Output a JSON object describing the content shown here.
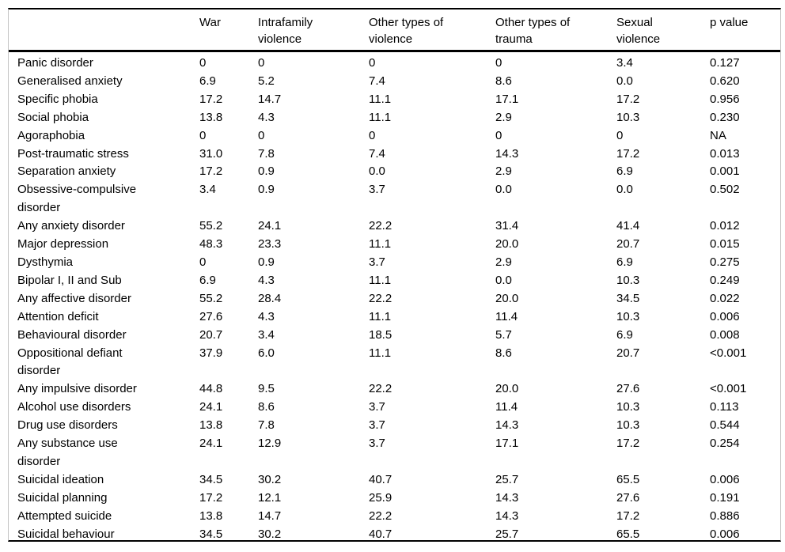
{
  "table": {
    "header": [
      "",
      "War",
      "Intrafamily violence",
      "Other types of violence",
      "Other types of trauma",
      "Sexual violence",
      "p value"
    ],
    "rows": [
      {
        "label": "Panic disorder",
        "values": [
          "0",
          "0",
          "0",
          "0",
          "3.4",
          "0.127"
        ]
      },
      {
        "label": "Generalised anxiety",
        "values": [
          "6.9",
          "5.2",
          "7.4",
          "8.6",
          "0.0",
          "0.620"
        ]
      },
      {
        "label": "Specific phobia",
        "values": [
          "17.2",
          "14.7",
          "11.1",
          "17.1",
          "17.2",
          "0.956"
        ]
      },
      {
        "label": "Social phobia",
        "values": [
          "13.8",
          "4.3",
          "11.1",
          "2.9",
          "10.3",
          "0.230"
        ]
      },
      {
        "label": "Agoraphobia",
        "values": [
          "0",
          "0",
          "0",
          "0",
          "0",
          "NA"
        ]
      },
      {
        "label": "Post-traumatic stress",
        "values": [
          "31.0",
          "7.8",
          "7.4",
          "14.3",
          "17.2",
          "0.013"
        ]
      },
      {
        "label": "Separation anxiety",
        "values": [
          "17.2",
          "0.9",
          "0.0",
          "2.9",
          "6.9",
          "0.001"
        ]
      },
      {
        "label": "Obsessive-compulsive disorder",
        "values": [
          "3.4",
          "0.9",
          "3.7",
          "0.0",
          "0.0",
          "0.502"
        ]
      },
      {
        "label": "Any anxiety disorder",
        "values": [
          "55.2",
          "24.1",
          "22.2",
          "31.4",
          "41.4",
          "0.012"
        ]
      },
      {
        "label": "Major depression",
        "values": [
          "48.3",
          "23.3",
          "11.1",
          "20.0",
          "20.7",
          "0.015"
        ]
      },
      {
        "label": "Dysthymia",
        "values": [
          "0",
          "0.9",
          "3.7",
          "2.9",
          "6.9",
          "0.275"
        ]
      },
      {
        "label": "Bipolar I, II and Sub",
        "values": [
          "6.9",
          "4.3",
          "11.1",
          "0.0",
          "10.3",
          "0.249"
        ]
      },
      {
        "label": "Any affective disorder",
        "values": [
          "55.2",
          "28.4",
          "22.2",
          "20.0",
          "34.5",
          "0.022"
        ]
      },
      {
        "label": "Attention deficit",
        "values": [
          "27.6",
          "4.3",
          "11.1",
          "11.4",
          "10.3",
          "0.006"
        ]
      },
      {
        "label": "Behavioural disorder",
        "values": [
          "20.7",
          "3.4",
          "18.5",
          "5.7",
          "6.9",
          "0.008"
        ]
      },
      {
        "label": "Oppositional defiant disorder",
        "values": [
          "37.9",
          "6.0",
          "11.1",
          "8.6",
          "20.7",
          "<0.001"
        ]
      },
      {
        "label": "Any impulsive disorder",
        "values": [
          "44.8",
          "9.5",
          "22.2",
          "20.0",
          "27.6",
          "<0.001"
        ]
      },
      {
        "label": "Alcohol use disorders",
        "values": [
          "24.1",
          "8.6",
          "3.7",
          "11.4",
          "10.3",
          "0.113"
        ]
      },
      {
        "label": "Drug use disorders",
        "values": [
          "13.8",
          "7.8",
          "3.7",
          "14.3",
          "10.3",
          "0.544"
        ]
      },
      {
        "label": "Any substance use disorder",
        "values": [
          "24.1",
          "12.9",
          "3.7",
          "17.1",
          "17.2",
          "0.254"
        ]
      },
      {
        "label": "Suicidal ideation",
        "values": [
          "34.5",
          "30.2",
          "40.7",
          "25.7",
          "65.5",
          "0.006"
        ]
      },
      {
        "label": "Suicidal planning",
        "values": [
          "17.2",
          "12.1",
          "25.9",
          "14.3",
          "27.6",
          "0.191"
        ]
      },
      {
        "label": "Attempted suicide",
        "values": [
          "13.8",
          "14.7",
          "22.2",
          "14.3",
          "17.2",
          "0.886"
        ]
      },
      {
        "label": "Suicidal behaviour",
        "values": [
          "34.5",
          "30.2",
          "40.7",
          "25.7",
          "65.5",
          "0.006"
        ]
      }
    ]
  }
}
